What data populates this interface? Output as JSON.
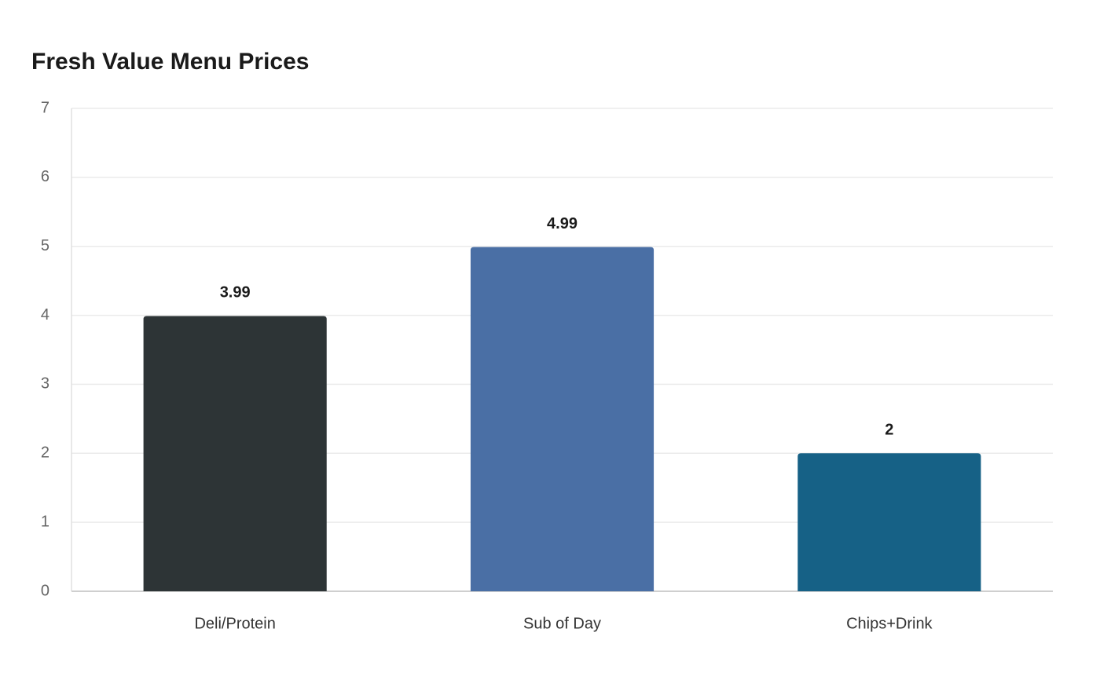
{
  "chart_data": {
    "type": "bar",
    "title": "Fresh Value Menu Prices",
    "categories": [
      "Deli/Protein",
      "Sub of Day",
      "Chips+Drink"
    ],
    "values": [
      3.99,
      4.99,
      2
    ],
    "colors": [
      "#2d3436",
      "#4a6fa5",
      "#166186"
    ],
    "ylim": [
      0,
      7
    ],
    "yticks": [
      0,
      1,
      2,
      3,
      4,
      5,
      6,
      7
    ],
    "grid": true
  }
}
